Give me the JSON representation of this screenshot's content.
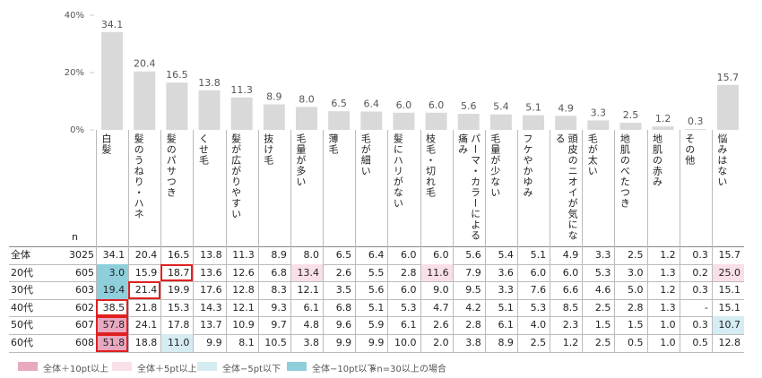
{
  "chart_data": {
    "type": "bar",
    "color": "#d9d9d9",
    "categories": [
      "白髪",
      "髪のうねり・ハネ",
      "髪のパサつき",
      "くせ毛",
      "髪が広がりやすい",
      "抜け毛",
      "毛量が多い",
      "薄毛",
      "毛が細い",
      "髪にハリがない",
      "枝毛・切れ毛",
      "パーマ・カラーによる痛み",
      "毛量が少ない",
      "フケやかゆみ",
      "頭皮のニオイが気になる",
      "毛が太い",
      "地肌のべたつき",
      "地肌の赤み",
      "その他",
      "悩みはない"
    ],
    "values": [
      34.1,
      20.4,
      16.5,
      13.8,
      11.3,
      8.9,
      8.0,
      6.5,
      6.4,
      6.0,
      6.0,
      5.6,
      5.4,
      5.1,
      4.9,
      3.3,
      2.5,
      1.2,
      0.3,
      15.7
    ],
    "value_labels": [
      "34.1",
      "20.4",
      "16.5",
      "13.8",
      "11.3",
      "8.9",
      "8.0",
      "6.5",
      "6.4",
      "6.0",
      "6.0",
      "5.6",
      "5.4",
      "5.1",
      "4.9",
      "3.3",
      "2.5",
      "1.2",
      "0.3",
      "15.7"
    ],
    "ylim": [
      0,
      40
    ],
    "yticks": [
      {
        "value": 0,
        "label": "0%"
      },
      {
        "value": 20,
        "label": "20%"
      },
      {
        "value": 40,
        "label": "40%"
      }
    ]
  },
  "table": {
    "n_header": "n",
    "rows": [
      {
        "label": "全体",
        "n": "3025",
        "values": [
          "34.1",
          "20.4",
          "16.5",
          "13.8",
          "11.3",
          "8.9",
          "8.0",
          "6.5",
          "6.4",
          "6.0",
          "6.0",
          "5.6",
          "5.4",
          "5.1",
          "4.9",
          "3.3",
          "2.5",
          "1.2",
          "0.3",
          "15.7"
        ],
        "shaded": {}
      },
      {
        "label": "20代",
        "n": "605",
        "values": [
          "3.0",
          "15.9",
          "18.7",
          "13.6",
          "12.6",
          "6.8",
          "13.4",
          "2.6",
          "5.5",
          "2.8",
          "11.6",
          "7.9",
          "3.6",
          "6.0",
          "6.0",
          "5.3",
          "3.0",
          "1.3",
          "0.2",
          "25.0"
        ],
        "shaded": {
          "0": "#8fcfdc",
          "6": "#f9dfe8",
          "10": "#f9dfe8",
          "19": "#f9dfe8"
        },
        "boxed": 2
      },
      {
        "label": "30代",
        "n": "603",
        "values": [
          "19.4",
          "21.4",
          "19.9",
          "17.6",
          "12.8",
          "8.3",
          "12.1",
          "3.5",
          "5.6",
          "6.0",
          "9.0",
          "9.5",
          "3.3",
          "7.6",
          "6.6",
          "4.6",
          "5.0",
          "1.2",
          "0.3",
          "15.1"
        ],
        "shaded": {
          "0": "#8fcfdc"
        },
        "boxed": 1
      },
      {
        "label": "40代",
        "n": "602",
        "values": [
          "38.5",
          "21.8",
          "15.3",
          "14.3",
          "12.1",
          "9.3",
          "6.1",
          "6.8",
          "5.1",
          "5.3",
          "4.7",
          "4.2",
          "5.1",
          "5.3",
          "8.5",
          "2.5",
          "2.8",
          "1.3",
          "-",
          "15.1"
        ],
        "shaded": {},
        "boxed": 0
      },
      {
        "label": "50代",
        "n": "607",
        "values": [
          "57.8",
          "24.1",
          "17.8",
          "13.7",
          "10.9",
          "9.7",
          "4.8",
          "9.6",
          "5.9",
          "6.1",
          "2.6",
          "2.8",
          "6.1",
          "4.0",
          "2.3",
          "1.5",
          "1.5",
          "1.0",
          "0.3",
          "10.7"
        ],
        "shaded": {
          "0": "#e8a9c0",
          "19": "#d5ecf2"
        },
        "boxed": 0
      },
      {
        "label": "60代",
        "n": "608",
        "values": [
          "51.8",
          "18.8",
          "11.0",
          "9.9",
          "8.1",
          "10.5",
          "3.8",
          "9.9",
          "9.9",
          "10.0",
          "2.0",
          "3.8",
          "8.9",
          "2.5",
          "1.2",
          "2.5",
          "0.5",
          "1.0",
          "0.5",
          "12.8"
        ],
        "shaded": {
          "0": "#e8a9c0",
          "2": "#d5ecf2"
        },
        "boxed": 0
      }
    ]
  },
  "legend": [
    {
      "label": "全体＋10pt以上",
      "color": "#e8a9c0"
    },
    {
      "label": "全体＋5pt以上",
      "color": "#f9dfe8"
    },
    {
      "label": "全体−5pt以下",
      "color": "#d5ecf2"
    },
    {
      "label": "全体−10pt以下",
      "color": "#8fcfdc"
    }
  ],
  "note": "※n=30以上の場合"
}
